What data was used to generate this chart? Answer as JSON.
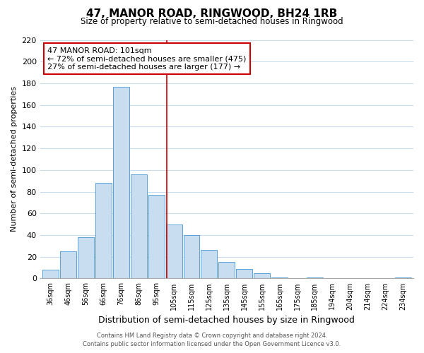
{
  "title": "47, MANOR ROAD, RINGWOOD, BH24 1RB",
  "subtitle": "Size of property relative to semi-detached houses in Ringwood",
  "xlabel": "Distribution of semi-detached houses by size in Ringwood",
  "ylabel": "Number of semi-detached properties",
  "bar_color": "#c8ddf0",
  "bar_edge_color": "#5ba3d9",
  "categories": [
    "36sqm",
    "46sqm",
    "56sqm",
    "66sqm",
    "76sqm",
    "86sqm",
    "95sqm",
    "105sqm",
    "115sqm",
    "125sqm",
    "135sqm",
    "145sqm",
    "155sqm",
    "165sqm",
    "175sqm",
    "185sqm",
    "194sqm",
    "204sqm",
    "214sqm",
    "224sqm",
    "234sqm"
  ],
  "values": [
    8,
    25,
    38,
    88,
    177,
    96,
    77,
    50,
    40,
    26,
    15,
    9,
    5,
    1,
    0,
    1,
    0,
    0,
    0,
    0,
    1
  ],
  "ylim": [
    0,
    220
  ],
  "yticks": [
    0,
    20,
    40,
    60,
    80,
    100,
    120,
    140,
    160,
    180,
    200,
    220
  ],
  "annotation_title": "47 MANOR ROAD: 101sqm",
  "annotation_line1": "← 72% of semi-detached houses are smaller (475)",
  "annotation_line2": "27% of semi-detached houses are larger (177) →",
  "footer_line1": "Contains HM Land Registry data © Crown copyright and database right 2024.",
  "footer_line2": "Contains public sector information licensed under the Open Government Licence v3.0.",
  "background_color": "#ffffff",
  "grid_color": "#c8ddf0",
  "vline_color": "#cc0000",
  "box_edge_color": "#cc0000",
  "vline_x_index": 6.6
}
